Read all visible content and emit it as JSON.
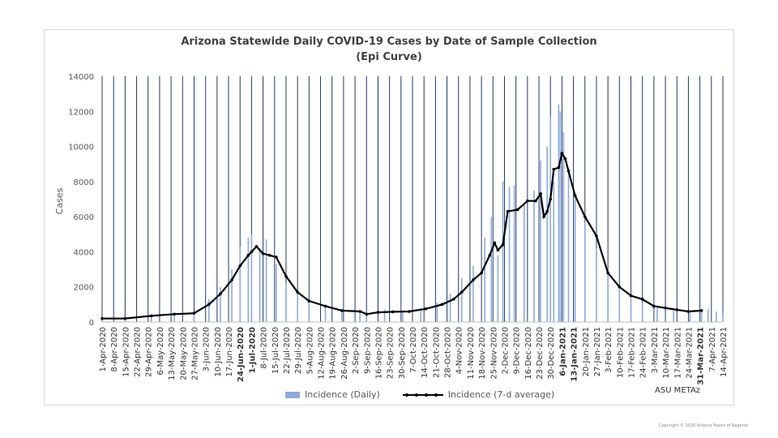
{
  "chart_data": {
    "type": "bar",
    "title": "Arizona Statewide Daily COVID-19 Cases by Date of Sample Collection",
    "subtitle": "(Epi Curve)",
    "ylabel": "Cases",
    "ylim": [
      0,
      14000
    ],
    "yticks": [
      "0",
      "2000",
      "4000",
      "6000",
      "8000",
      "10000",
      "12000",
      "14000"
    ],
    "x_start": "2020-04-01",
    "x_end": "2021-04-14",
    "xtick_labels": [
      "1-Apr-2020",
      "8-Apr-2020",
      "15-Apr-2020",
      "22-Apr-2020",
      "29-Apr-2020",
      "6-May-2020",
      "13-May-2020",
      "20-May-2020",
      "27-May-2020",
      "3-Jun-2020",
      "10-Jun-2020",
      "17-Jun-2020",
      "24-Jun-2020",
      "1-Jul-2020",
      "8-Jul-2020",
      "15-Jul-2020",
      "22-Jul-2020",
      "29-Jul-2020",
      "5-Aug-2020",
      "12-Aug-2020",
      "19-Aug-2020",
      "26-Aug-2020",
      "2-Sep-2020",
      "9-Sep-2020",
      "16-Sep-2020",
      "23-Sep-2020",
      "30-Sep-2020",
      "7-Oct-2020",
      "14-Oct-2020",
      "21-Oct-2020",
      "28-Oct-2020",
      "4-Nov-2020",
      "11-Nov-2020",
      "18-Nov-2020",
      "25-Nov-2020",
      "2-Dec-2020",
      "9-Dec-2020",
      "16-Dec-2020",
      "23-Dec-2020",
      "30-Dec-2020",
      "6-Jan-2021",
      "13-Jan-2021",
      "20-Jan-2021",
      "27-Jan-2021",
      "3-Feb-2021",
      "10-Feb-2021",
      "17-Feb-2021",
      "24-Feb-2021",
      "3-Mar-2021",
      "10-Mar-2021",
      "17-Mar-2021",
      "24-Mar-2021",
      "31-Mar-2021",
      "7-Apr-2021",
      "14-Apr-2021"
    ],
    "bold_xticks": [
      "24-Jun-2020",
      "1-Jul-2020",
      "6-Jan-2021",
      "13-Jan-2021",
      "31-Mar-2021"
    ],
    "series": [
      {
        "name": "Incidence (Daily)",
        "kind": "bar",
        "color": "#8eaadb",
        "x": [
          "2020-04-01",
          "2020-04-15",
          "2020-05-01",
          "2020-05-15",
          "2020-05-27",
          "2020-06-05",
          "2020-06-12",
          "2020-06-19",
          "2020-06-24",
          "2020-06-29",
          "2020-07-01",
          "2020-07-06",
          "2020-07-10",
          "2020-07-16",
          "2020-07-22",
          "2020-07-29",
          "2020-08-05",
          "2020-08-15",
          "2020-08-25",
          "2020-09-05",
          "2020-09-09",
          "2020-09-20",
          "2020-10-01",
          "2020-10-12",
          "2020-10-22",
          "2020-10-30",
          "2020-11-06",
          "2020-11-13",
          "2020-11-20",
          "2020-11-24",
          "2020-11-28",
          "2020-12-01",
          "2020-12-05",
          "2020-12-08",
          "2020-12-14",
          "2020-12-20",
          "2020-12-24",
          "2020-12-28",
          "2020-12-30",
          "2021-01-01",
          "2021-01-04",
          "2021-01-05",
          "2021-01-07",
          "2021-01-10",
          "2021-01-14",
          "2021-01-20",
          "2021-01-27",
          "2021-02-03",
          "2021-02-10",
          "2021-02-17",
          "2021-02-24",
          "2021-03-05",
          "2021-03-15",
          "2021-03-25",
          "2021-04-01",
          "2021-04-05",
          "2021-04-10",
          "2021-04-14"
        ],
        "values": [
          250,
          250,
          400,
          500,
          550,
          1300,
          2000,
          3000,
          4300,
          4800,
          5000,
          4200,
          4700,
          3300,
          2200,
          1600,
          1100,
          800,
          600,
          500,
          300,
          700,
          600,
          800,
          1100,
          1600,
          2500,
          3200,
          4800,
          6000,
          3800,
          8000,
          7700,
          7800,
          6700,
          7500,
          9200,
          10000,
          11700,
          8000,
          12400,
          12000,
          10800,
          8700,
          7000,
          5700,
          4200,
          2800,
          2000,
          1500,
          1100,
          800,
          650,
          600,
          600,
          750,
          600,
          500
        ]
      },
      {
        "name": "Incidence (7-d average)",
        "kind": "line",
        "color": "#000000",
        "x": [
          "2020-04-01",
          "2020-04-15",
          "2020-05-01",
          "2020-05-15",
          "2020-05-27",
          "2020-06-05",
          "2020-06-12",
          "2020-06-19",
          "2020-06-24",
          "2020-06-29",
          "2020-07-01",
          "2020-07-04",
          "2020-07-08",
          "2020-07-12",
          "2020-07-16",
          "2020-07-22",
          "2020-07-29",
          "2020-08-05",
          "2020-08-15",
          "2020-08-25",
          "2020-09-05",
          "2020-09-09",
          "2020-09-16",
          "2020-09-25",
          "2020-10-05",
          "2020-10-15",
          "2020-10-25",
          "2020-11-01",
          "2020-11-06",
          "2020-11-13",
          "2020-11-18",
          "2020-11-23",
          "2020-11-26",
          "2020-11-28",
          "2020-12-01",
          "2020-12-04",
          "2020-12-10",
          "2020-12-16",
          "2020-12-21",
          "2020-12-24",
          "2020-12-26",
          "2020-12-28",
          "2020-12-30",
          "2021-01-01",
          "2021-01-04",
          "2021-01-06",
          "2021-01-08",
          "2021-01-10",
          "2021-01-14",
          "2021-01-20",
          "2021-01-27",
          "2021-02-03",
          "2021-02-10",
          "2021-02-17",
          "2021-02-24",
          "2021-03-03",
          "2021-03-10",
          "2021-03-17",
          "2021-03-24",
          "2021-04-01"
        ],
        "values": [
          200,
          200,
          350,
          450,
          500,
          1000,
          1600,
          2400,
          3200,
          3800,
          4000,
          4300,
          3900,
          3800,
          3700,
          2600,
          1700,
          1200,
          900,
          650,
          600,
          450,
          550,
          580,
          600,
          750,
          1000,
          1300,
          1700,
          2400,
          2800,
          3800,
          4500,
          4100,
          4400,
          6300,
          6400,
          6900,
          6900,
          7300,
          6000,
          6300,
          7000,
          8700,
          8800,
          9600,
          9300,
          8600,
          7200,
          6000,
          4900,
          2800,
          2000,
          1500,
          1300,
          900,
          800,
          700,
          600,
          650
        ]
      }
    ],
    "legend_position": "bottom",
    "legend": [
      "Incidence (Daily)",
      "Incidence (7-d average)"
    ],
    "gridlines": "vertical"
  },
  "page": {
    "watermark": "ASU METAz",
    "copyright": "Copyright © 2020 Arizona Board of Regents"
  }
}
